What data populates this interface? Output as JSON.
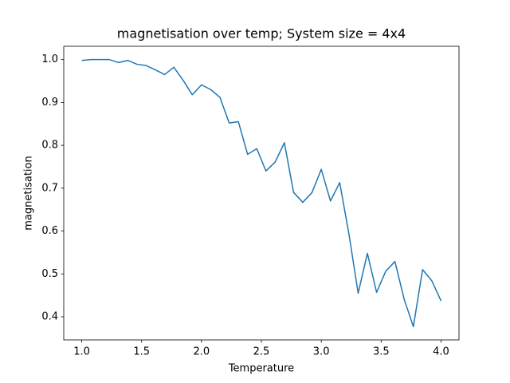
{
  "chart_data": {
    "type": "line",
    "title": "magnetisation over temp; System size = 4x4",
    "x_label": "Temperature",
    "y_label": "magnetisation",
    "x": [
      1,
      1.077,
      1.154,
      1.231,
      1.308,
      1.385,
      1.462,
      1.538,
      1.615,
      1.692,
      1.769,
      1.846,
      1.923,
      2,
      2.077,
      2.154,
      2.231,
      2.308,
      2.385,
      2.462,
      2.538,
      2.615,
      2.692,
      2.769,
      2.846,
      2.923,
      3,
      3.077,
      3.154,
      3.231,
      3.308,
      3.385,
      3.462,
      3.538,
      3.615,
      3.692,
      3.769,
      3.846,
      3.923,
      4
    ],
    "values": [
      0.998,
      1.0,
      1.0,
      1.0,
      0.993,
      0.998,
      0.989,
      0.986,
      0.976,
      0.965,
      0.982,
      0.952,
      0.918,
      0.941,
      0.93,
      0.912,
      0.852,
      0.855,
      0.779,
      0.792,
      0.74,
      0.761,
      0.806,
      0.69,
      0.667,
      0.69,
      0.744,
      0.67,
      0.713,
      0.593,
      0.455,
      0.548,
      0.457,
      0.506,
      0.529,
      0.441,
      0.377,
      0.51,
      0.484,
      0.437
    ],
    "color": "#1f77b4",
    "xlim": [
      0.85,
      4.15
    ],
    "ylim": [
      0.346,
      1.031
    ],
    "xticks": [
      {
        "value": 1,
        "label": "1.0"
      },
      1.5,
      {
        "value": 2,
        "label": "2.0"
      },
      2.5,
      {
        "value": 3,
        "label": "3.0"
      },
      3.5,
      {
        "value": 4,
        "label": "4.0"
      }
    ],
    "yticks": [
      0.4,
      0.5,
      0.6,
      0.7,
      0.8,
      0.9,
      {
        "value": 1,
        "label": "1.0"
      }
    ]
  }
}
